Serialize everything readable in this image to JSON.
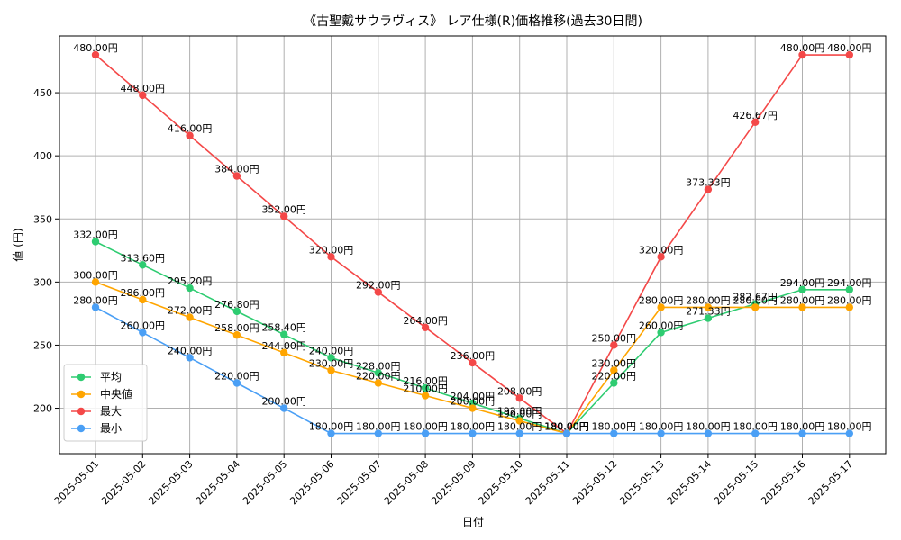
{
  "chart_data": {
    "type": "line",
    "title": "《古聖戴サウラヴィス》 レア仕様(R)価格推移(過去30日間)",
    "xlabel": "日付",
    "ylabel": "値 (円)",
    "ylim": [
      164,
      495
    ],
    "yticks": [
      200,
      250,
      300,
      350,
      400,
      450
    ],
    "grid": true,
    "legend_position": "bottom-left",
    "value_suffix": "円",
    "categories": [
      "2025-05-01",
      "2025-05-02",
      "2025-05-03",
      "2025-05-04",
      "2025-05-05",
      "2025-05-06",
      "2025-05-07",
      "2025-05-08",
      "2025-05-09",
      "2025-05-10",
      "2025-05-11",
      "2025-05-12",
      "2025-05-13",
      "2025-05-14",
      "2025-05-15",
      "2025-05-16",
      "2025-05-17"
    ],
    "series": [
      {
        "name": "平均",
        "color": "#2ecc71",
        "values": [
          332,
          313.6,
          295.2,
          276.8,
          258.4,
          240,
          228,
          216,
          204,
          192,
          180,
          220,
          260,
          271.33,
          282.67,
          294,
          294
        ]
      },
      {
        "name": "中央値",
        "color": "#ffa500",
        "values": [
          300,
          286,
          272,
          258,
          244,
          230,
          220,
          210,
          200,
          190,
          180,
          230,
          280,
          280,
          280,
          280,
          280
        ]
      },
      {
        "name": "最大",
        "color": "#f44848",
        "values": [
          480,
          448,
          416,
          384,
          352,
          320,
          292,
          264,
          236,
          208,
          180,
          250,
          320,
          373.33,
          426.67,
          480,
          480
        ]
      },
      {
        "name": "最小",
        "color": "#4a9ff5",
        "values": [
          280,
          260,
          240,
          220,
          200,
          180,
          180,
          180,
          180,
          180,
          180,
          180,
          180,
          180,
          180,
          180,
          180
        ]
      }
    ]
  }
}
